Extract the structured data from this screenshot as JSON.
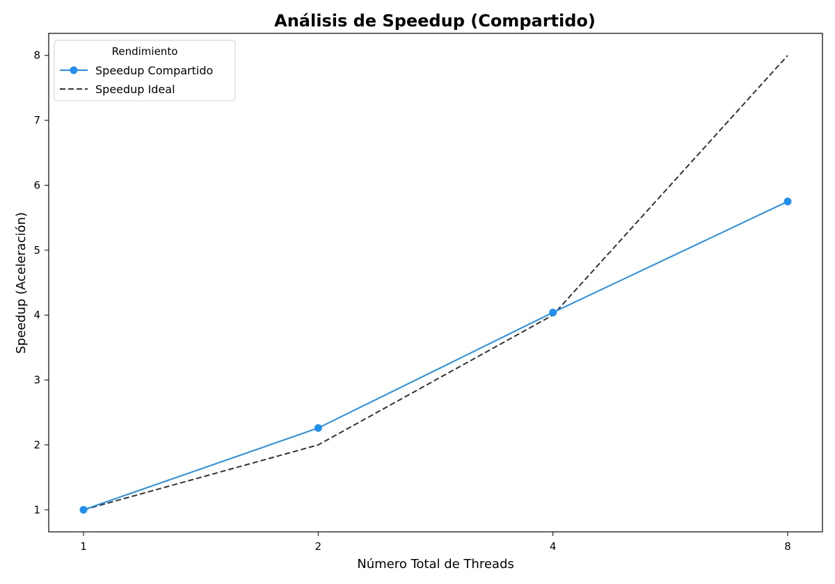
{
  "chart_data": {
    "type": "line",
    "title": "Análisis de Speedup (Compartido)",
    "xlabel": "Número Total de Threads",
    "ylabel": "Speedup (Aceleración)",
    "x": [
      1,
      2,
      4,
      8
    ],
    "x_tick_labels": [
      "1",
      "2",
      "4",
      "8"
    ],
    "x_scale": "categorical",
    "ylim": [
      0.66,
      8.34
    ],
    "y_ticks": [
      1,
      2,
      3,
      4,
      5,
      6,
      7,
      8
    ],
    "grid": false,
    "legend": {
      "title": "Rendimiento",
      "placement": "top-left"
    },
    "series": [
      {
        "name": "Speedup Compartido",
        "values": [
          1.0,
          2.26,
          4.04,
          5.75
        ],
        "color": "#1f8ff0",
        "style": "solid",
        "marker": "circle"
      },
      {
        "name": "Speedup Ideal",
        "values": [
          1,
          2,
          4,
          8
        ],
        "color": "#333333",
        "style": "dashed",
        "marker": "none"
      }
    ]
  }
}
